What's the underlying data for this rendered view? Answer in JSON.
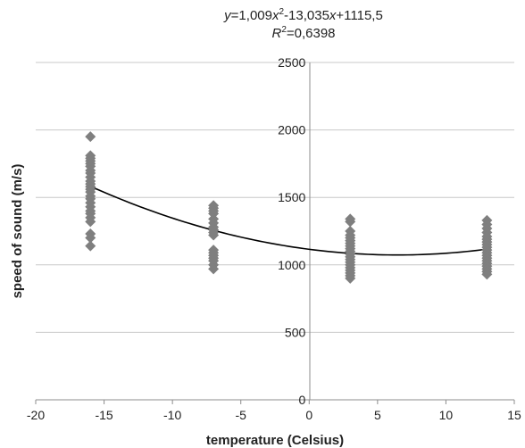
{
  "chart_data": {
    "type": "scatter",
    "title": "",
    "xlabel": "temperature (Celsius)",
    "ylabel": "speed of sound (m/s)",
    "xlim": [
      -20,
      15
    ],
    "ylim": [
      0,
      2500
    ],
    "x_ticks": [
      "-20",
      "-15",
      "-10",
      "-5",
      "0",
      "5",
      "10",
      "15"
    ],
    "y_ticks": [
      "0",
      "500",
      "1000",
      "1500",
      "2000",
      "2500"
    ],
    "grid": "horizontal",
    "marker": "diamond",
    "marker_color": "#7f7f7f",
    "series": [
      {
        "points": [
          [
            -16,
            1950
          ],
          [
            -16,
            1810
          ],
          [
            -16,
            1790
          ],
          [
            -16,
            1770
          ],
          [
            -16,
            1750
          ],
          [
            -16,
            1730
          ],
          [
            -16,
            1700
          ],
          [
            -16,
            1680
          ],
          [
            -16,
            1650
          ],
          [
            -16,
            1620
          ],
          [
            -16,
            1600
          ],
          [
            -16,
            1580
          ],
          [
            -16,
            1560
          ],
          [
            -16,
            1540
          ],
          [
            -16,
            1510
          ],
          [
            -16,
            1490
          ],
          [
            -16,
            1460
          ],
          [
            -16,
            1430
          ],
          [
            -16,
            1400
          ],
          [
            -16,
            1380
          ],
          [
            -16,
            1350
          ],
          [
            -16,
            1320
          ],
          [
            -16,
            1230
          ],
          [
            -16,
            1200
          ],
          [
            -16,
            1140
          ],
          [
            -7,
            1440
          ],
          [
            -7,
            1420
          ],
          [
            -7,
            1400
          ],
          [
            -7,
            1380
          ],
          [
            -7,
            1340
          ],
          [
            -7,
            1310
          ],
          [
            -7,
            1280
          ],
          [
            -7,
            1260
          ],
          [
            -7,
            1240
          ],
          [
            -7,
            1220
          ],
          [
            -7,
            1110
          ],
          [
            -7,
            1090
          ],
          [
            -7,
            1070
          ],
          [
            -7,
            1050
          ],
          [
            -7,
            1030
          ],
          [
            -7,
            1000
          ],
          [
            -7,
            970
          ],
          [
            3,
            1340
          ],
          [
            3,
            1320
          ],
          [
            3,
            1250
          ],
          [
            3,
            1220
          ],
          [
            3,
            1200
          ],
          [
            3,
            1180
          ],
          [
            3,
            1160
          ],
          [
            3,
            1140
          ],
          [
            3,
            1120
          ],
          [
            3,
            1100
          ],
          [
            3,
            1080
          ],
          [
            3,
            1060
          ],
          [
            3,
            1040
          ],
          [
            3,
            1020
          ],
          [
            3,
            1000
          ],
          [
            3,
            980
          ],
          [
            3,
            960
          ],
          [
            3,
            940
          ],
          [
            3,
            920
          ],
          [
            3,
            900
          ],
          [
            13,
            1330
          ],
          [
            13,
            1300
          ],
          [
            13,
            1270
          ],
          [
            13,
            1240
          ],
          [
            13,
            1210
          ],
          [
            13,
            1190
          ],
          [
            13,
            1170
          ],
          [
            13,
            1150
          ],
          [
            13,
            1130
          ],
          [
            13,
            1110
          ],
          [
            13,
            1090
          ],
          [
            13,
            1070
          ],
          [
            13,
            1050
          ],
          [
            13,
            1030
          ],
          [
            13,
            1010
          ],
          [
            13,
            990
          ],
          [
            13,
            970
          ],
          [
            13,
            950
          ],
          [
            13,
            930
          ]
        ]
      }
    ],
    "trendline": {
      "type": "polynomial",
      "coefficients": [
        1.009,
        -13.035,
        1115.5
      ],
      "x_range": [
        -16,
        13
      ],
      "color": "#000000"
    },
    "annotations": {
      "equation_prefix": "y",
      "equation_mid1": "=1,009",
      "equation_x": "x",
      "equation_exp": "2",
      "equation_mid2": "-13,035",
      "equation_x2": "x",
      "equation_tail": "+1115,5",
      "r2_label": "R",
      "r2_exp": "2",
      "r2_value": "=0,6398"
    }
  }
}
